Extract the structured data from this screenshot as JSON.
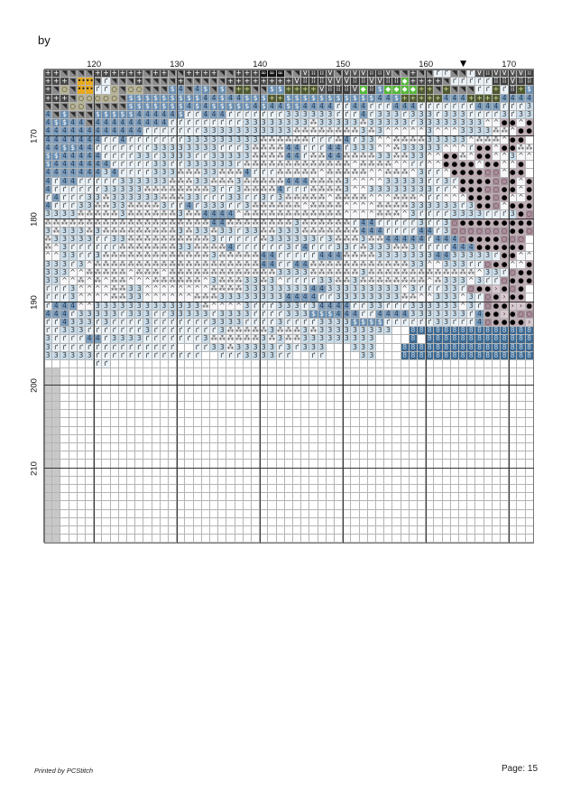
{
  "header": {
    "by_label": "by"
  },
  "footer": {
    "printed_by": "Printed by PCStitch",
    "page": "Page: 15"
  },
  "chart": {
    "first_column": 114,
    "first_row": 162,
    "columns": 59,
    "rows": 57,
    "column_labels": [
      "120",
      "130",
      "140",
      "150",
      "160",
      "170"
    ],
    "row_labels": [
      "170",
      "180",
      "190",
      "200",
      "210"
    ],
    "center_marker_column": 164,
    "center_marker_icon": "triangle-down-icon",
    "symbol_key": {
      "K": {
        "bg": "#4b4b4b",
        "fg": "#ffffff",
        "sym": "+"
      },
      "D": {
        "bg": "#8c8c8c",
        "fg": "#2a2a2a",
        "sym": "◥"
      },
      "G": {
        "bg": "#b0b0b0",
        "fg": "#333333",
        "sym": "◥"
      },
      "B": {
        "bg": "#111111",
        "fg": "#ffffff",
        "sym": "∞"
      },
      "V": {
        "bg": "#555555",
        "fg": "#ffffff",
        "sym": "V"
      },
      "H": {
        "bg": "#3e3e3e",
        "fg": "#ffffff",
        "sym": "⠿"
      },
      "O": {
        "bg": "#b7b391",
        "fg": "#333333",
        "sym": "○"
      },
      "Y": {
        "bg": "#e8a91c",
        "fg": "#222222",
        "sym": "••"
      },
      "E": {
        "bg": "#4f5a33",
        "fg": "#e0e0a0",
        "sym": "+"
      },
      "g": {
        "bg": "#55b83a",
        "fg": "#ffffff",
        "sym": "◆"
      },
      "$": {
        "bg": "#6a8fb2",
        "fg": "#ffffff",
        "sym": "$"
      },
      "4": {
        "bg": "#7f9fbe",
        "fg": "#1d3550",
        "sym": "4"
      },
      "r": {
        "bg": "#eaf2f8",
        "fg": "#222222",
        "sym": "ґ"
      },
      "3": {
        "bg": "#c9dcea",
        "fg": "#333333",
        "sym": "3"
      },
      "c": {
        "bg": "#f3f4f7",
        "fg": "#444444",
        "sym": "⁂"
      },
      "^": {
        "bg": "#f7f7f9",
        "fg": "#333333",
        "sym": "^"
      },
      "p": {
        "bg": "#bfaab3",
        "fg": "#000000",
        "sym": "●"
      },
      "q": {
        "bg": "#a98e9b",
        "fg": "#5a3e4a",
        "sym": "○"
      },
      ">": {
        "bg": "#d8c8cf",
        "fg": "#333333",
        "sym": "›"
      },
      "n": {
        "bg": "#3d6a92",
        "fg": "#c7d8e8",
        "sym": "8"
      },
      "w": {
        "bg": "#ffffff",
        "fg": "#ffffff",
        "sym": ""
      }
    },
    "pattern_rows": [
      "KKDDDDKKKKKKDKKDDKKKKDDKKKBBBDDVHHVDVVVHHVDDKDDrrDDrVHVVVVH",
      "KKKDYYDrDDDKDDDDKDDDDDKKKKKKKKVHHHVVVHHVVHHgKKKKDrrrrrHHVHH",
      "KDODYYrrODOODDD$4D4$D$DEEDD$$EEEEVHHHVgH$ggggEEDEDDDrrErHE$",
      "KKKDOOOOOD$$$$$$$$$44$44$$$EE$$$$$$$$$$$44$EEEEE444EEEE4444",
      "DDDOODDDDD$$$$$$$4$4$$$$$4$44$$4444rr44rrr444rrrrrrr444rrr3",
      "4D$DDD$$$$$44444$rr444rrrrrrr333333rrr4r333r333r333rrrr3r33",
      "4$$44D444444444rrrrrrrrr33333333c33333c33333r33333333^^pp^p",
      "444444444444rrrrrrr33333333333cccccccc3c3^^^^^3^^^3333cc^pp",
      "4444444rr4rrrrrrr333333333ccccccrrrc4r33^^cccc33333^ccc^pp",
      "44$$44rrrrrrr33333333rrr3cccc44rrr44r333^^c33333^^^rpp^ppcc",
      "$$44444rrrr33r3333rr33333cccc44rcc44cccc33cc33^^ppc^pp^^3^^",
      "$4444444rrrrr33rr333333rccccccccccccc^cccc^^rr^^pppp^pp^^p",
      "444444434rrrr333ccc33ccc4rrrccccc^ccccc^^ccc^3rr^ppppqq^pp",
      "4r44rrrrr333333ccc33ccc3ccccc444cccc3^^^^33333rr3rppppqqp^p",
      "4rrrrrr33333cccccccc3rr3cccc4rrrcccc3^^33333333rr^pppqqpp^p",
      "r4rrr33c333333ccc33rrr33rr3r3ccccc^cccc^^^ccc^rr^^^pppqp^^p",
      "4rrr33cc33cccc3rr4r333rr3cccccc^cccc^^^^cccc333333r3ppq^ppp",
      "3333ccccc3cccccc3cc4444^cccccccccccc^^^^ccc^3rrrr3333rrr3pqp",
      "cccccccccccccccccccc44cccccccc3ccccccr44rrrrr3rr3qpppppppppp",
      "3c333c3ccccccccc3c33c33r33cc333ccccccc444rrrr44r3qqqqqqqppq",
      "c33333rr33cccccccccc3rrrrrc333333r3ccc3cc44444r444qppppqqq",
      "c^3rrrrrrccccccc33cccc4rrrrrr3r4rrr33rc333cc3rrrr444pppppp",
      "^^33rr3ccccccccccccc3ccccc44rrrrr444cccc33333334433333rpp^^p",
      "333r3^cccccccccccccccccccc44rr44cccccccccccc33^^333rrqpp^^p",
      "333^^ccccc^ccc^ccccccccccccc3333cccccc3ccccccccccccc^33rqpp",
      "33^^c^c^cc^^^cccccc^3ccc33c3^rrrr33cc3cccccccc^c333^3rrqppp",
      "rrr3^^^^cc33^^^^^^^^cccc3333333344333333333^3rrr33rqpp>pqp",
      "rrr3^^^^cc33^^^^^^ccc333333334444rr33333333cc^^333^3rqp>pp",
      "r444^^3333333333333c^^^^3rrr333r34444rr33rrr333333^3rqpp>>p",
      "444r33333r333rr33333r3333rrrr333$$$444rr44443333333r4pp>pqq",
      "rr4333r3rrrr3rrrrrrr3333rrrr3rrrr3333$$$$rrrrrr33rrr4qpppp>>",
      "rr333rrrrrrr3rrrrrrrr3ccccc3ccc3c333333333  nnnnnnnnnnnnnnn",
      "3rrrr44r3333rrrrrrr3cccccc3c3cc333333333    nwnnnnnnnnnnnnn",
      "3rrrrrrrrrrrrrrr  rr33c33333r3r333   333   nnnnnnnnnnnnnnnn",
      "333333rrrrrrrrrrrrr  rrr3333rr  rr    33   nnnnnnnnnnnnnnnn",
      "      rr"
    ],
    "empty_row_margin_color": "#c8c8c8"
  }
}
